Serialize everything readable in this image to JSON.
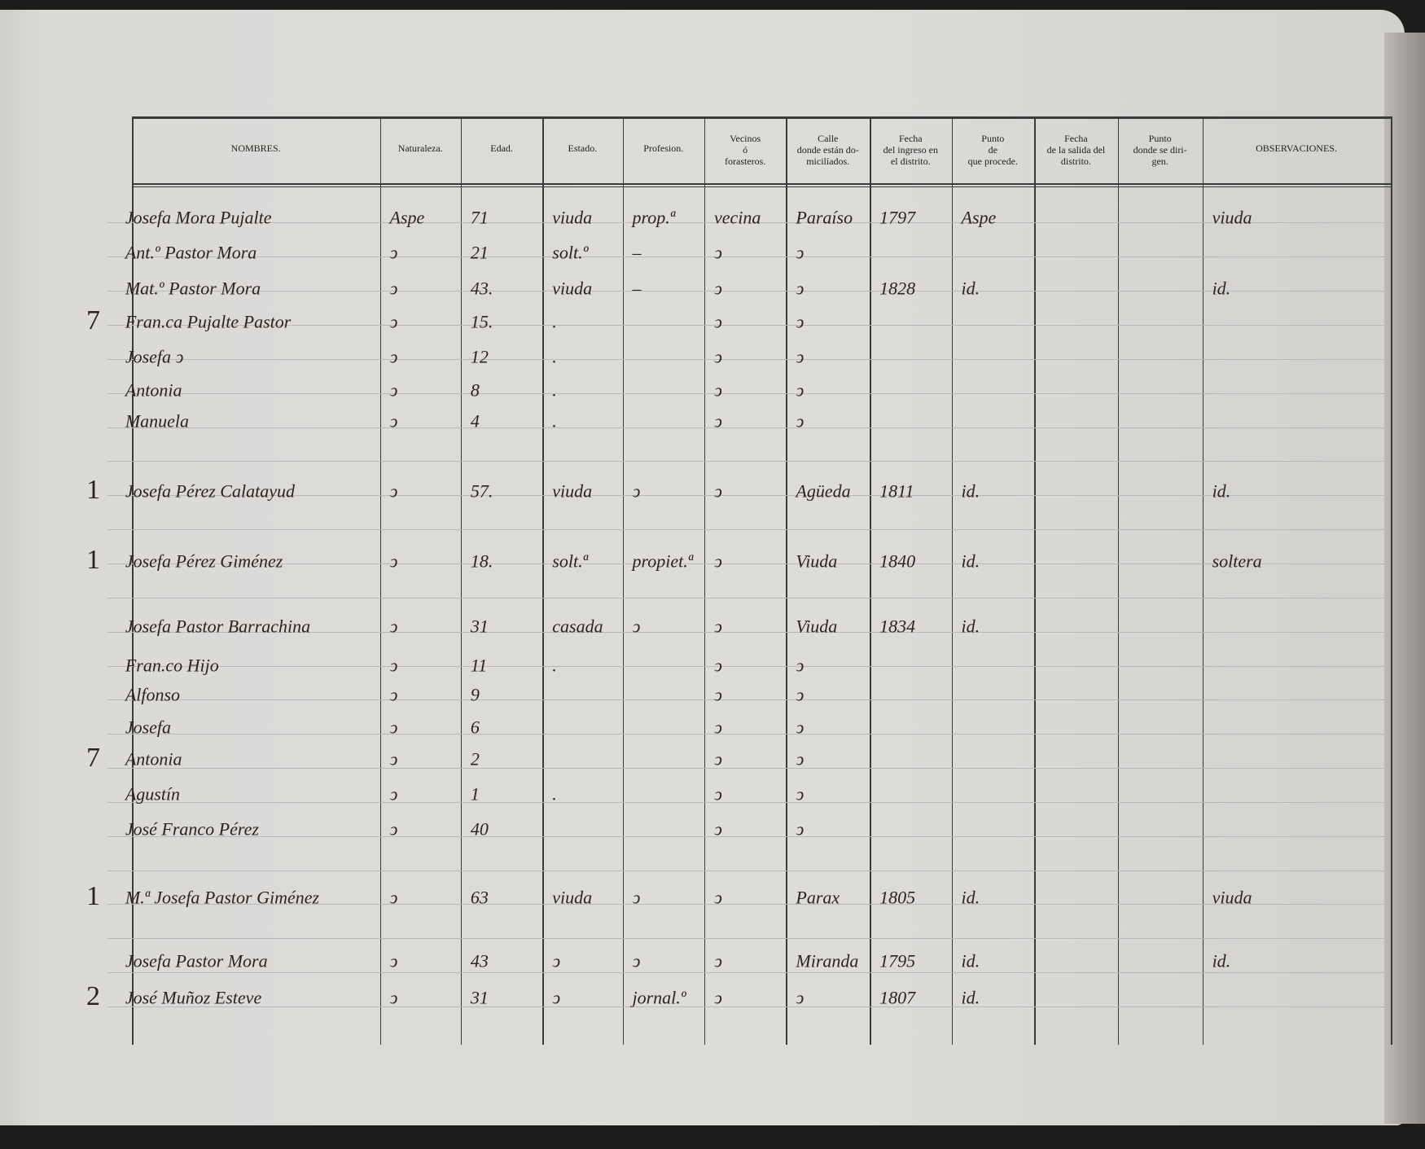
{
  "table": {
    "headers": [
      [
        "NOMBRES."
      ],
      [
        "Naturaleza."
      ],
      [
        "Edad."
      ],
      [
        "Estado."
      ],
      [
        "Profesion."
      ],
      [
        "Vecinos",
        "ó",
        "forasteros."
      ],
      [
        "Calle",
        "donde están do-",
        "micilíados."
      ],
      [
        "Fecha",
        "del ingreso en",
        "el distrito."
      ],
      [
        "Punto",
        "de",
        "que procede."
      ],
      [
        "Fecha",
        "de la salida del",
        "distrito."
      ],
      [
        "Punto",
        "donde se diri-",
        "gen."
      ],
      [
        "OBSERVACIONES."
      ]
    ],
    "rows": [
      {
        "nombres": "Josefa Mora Pujalte",
        "naturaleza": "Aspe",
        "edad": "71",
        "estado": "viuda",
        "profesion": "prop.ª",
        "vecinos": "vecina",
        "calle": "Paraíso",
        "ingreso": "1797",
        "procede": "Aspe",
        "observaciones": "viuda"
      },
      {
        "nombres": "Ant.º Pastor Mora",
        "naturaleza": "ↄ",
        "edad": "21",
        "estado": "solt.º",
        "profesion": "–",
        "vecinos": "ↄ",
        "calle": "ↄ"
      },
      {
        "nombres": "Mat.º Pastor Mora",
        "naturaleza": "ↄ",
        "edad": "43.",
        "estado": "viuda",
        "profesion": "–",
        "vecinos": "ↄ",
        "calle": "ↄ",
        "ingreso": "1828",
        "procede": "id.",
        "observaciones": "id."
      },
      {
        "margin": "7",
        "nombres": "Fran.ca Pujalte Pastor",
        "naturaleza": "ↄ",
        "edad": "15.",
        "estado": ".",
        "vecinos": "ↄ",
        "calle": "ↄ"
      },
      {
        "nombres": "Josefa ↄ",
        "naturaleza": "ↄ",
        "edad": "12",
        "estado": ".",
        "vecinos": "ↄ",
        "calle": "ↄ"
      },
      {
        "nombres": "Antonia",
        "naturaleza": "ↄ",
        "edad": "8",
        "estado": ".",
        "vecinos": "ↄ",
        "calle": "ↄ"
      },
      {
        "nombres": "Manuela",
        "naturaleza": "ↄ",
        "edad": "4",
        "estado": ".",
        "vecinos": "ↄ",
        "calle": "ↄ"
      },
      {
        "margin": "1",
        "nombres": "Josefa Pérez Calatayud",
        "naturaleza": "ↄ",
        "edad": "57.",
        "estado": "viuda",
        "profesion": "ↄ",
        "vecinos": "ↄ",
        "calle": "Agüeda",
        "ingreso": "1811",
        "procede": "id.",
        "observaciones": "id."
      },
      {
        "margin": "1",
        "nombres": "Josefa Pérez Giménez",
        "naturaleza": "ↄ",
        "edad": "18.",
        "estado": "solt.ª",
        "profesion": "propiet.ª",
        "vecinos": "ↄ",
        "calle": "Viuda",
        "ingreso": "1840",
        "procede": "id.",
        "observaciones": "soltera"
      },
      {
        "nombres": "Josefa Pastor Barrachina",
        "naturaleza": "ↄ",
        "edad": "31",
        "estado": "casada",
        "profesion": "ↄ",
        "vecinos": "ↄ",
        "calle": "Viuda",
        "ingreso": "1834",
        "procede": "id."
      },
      {
        "nombres": "Fran.co Hijo",
        "naturaleza": "ↄ",
        "edad": "11",
        "estado": ".",
        "vecinos": "ↄ",
        "calle": "ↄ"
      },
      {
        "nombres": "Alfonso",
        "naturaleza": "ↄ",
        "edad": "9",
        "vecinos": "ↄ",
        "calle": "ↄ"
      },
      {
        "nombres": "Josefa",
        "naturaleza": "ↄ",
        "edad": "6",
        "vecinos": "ↄ",
        "calle": "ↄ"
      },
      {
        "margin": "7",
        "nombres": "Antonia",
        "naturaleza": "ↄ",
        "edad": "2",
        "vecinos": "ↄ",
        "calle": "ↄ"
      },
      {
        "nombres": "Agustín",
        "naturaleza": "ↄ",
        "edad": "1",
        "estado": ".",
        "vecinos": "ↄ",
        "calle": "ↄ"
      },
      {
        "nombres": "José Franco Pérez",
        "naturaleza": "ↄ",
        "edad": "40",
        "vecinos": "ↄ",
        "calle": "ↄ"
      },
      {
        "margin": "1",
        "nombres": "M.ª Josefa Pastor Giménez",
        "naturaleza": "ↄ",
        "edad": "63",
        "estado": "viuda",
        "profesion": "ↄ",
        "vecinos": "ↄ",
        "calle": "Parax",
        "ingreso": "1805",
        "procede": "id.",
        "observaciones": "viuda"
      },
      {
        "nombres": "Josefa Pastor Mora",
        "naturaleza": "ↄ",
        "edad": "43",
        "estado": "ↄ",
        "profesion": "ↄ",
        "vecinos": "ↄ",
        "calle": "Miranda",
        "ingreso": "1795",
        "procede": "id.",
        "observaciones": "id."
      },
      {
        "margin": "2",
        "nombres": "José Muñoz Esteve",
        "naturaleza": "ↄ",
        "edad": "31",
        "estado": "ↄ",
        "profesion": "jornal.º",
        "vecinos": "ↄ",
        "calle": "ↄ",
        "ingreso": "1807",
        "procede": "id."
      }
    ]
  }
}
